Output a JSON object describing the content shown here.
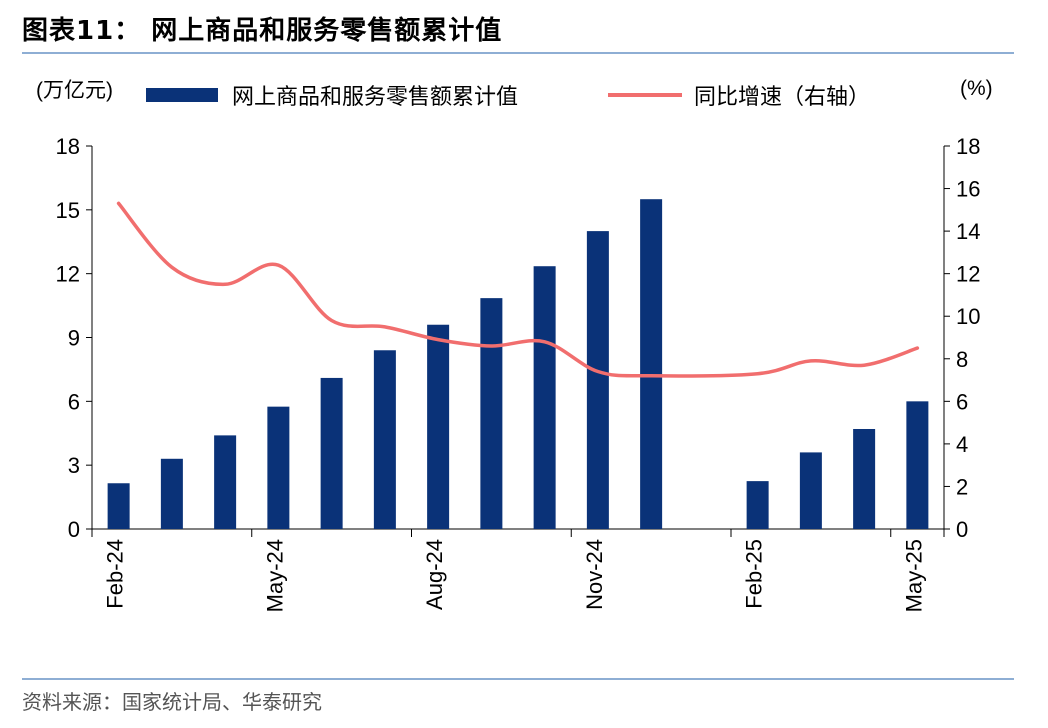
{
  "header": {
    "title": "图表11：  网上商品和服务零售额累计值"
  },
  "footer": {
    "source": "资料来源：国家统计局、华泰研究"
  },
  "colors": {
    "bar": "#0a3278",
    "line": "#f16e6e",
    "axis": "#000000",
    "rule": "#8eaed4"
  },
  "chart_data": {
    "type": "bar+line",
    "title": "网上商品和服务零售额累计值",
    "left_unit": "(万亿元)",
    "right_unit": "(%)",
    "legend": {
      "bar": "网上商品和服务零售额累计值",
      "line": "同比增速（右轴）"
    },
    "categories": [
      "Feb-24",
      "Mar-24",
      "Apr-24",
      "May-24",
      "Jun-24",
      "Jul-24",
      "Aug-24",
      "Sep-24",
      "Oct-24",
      "Nov-24",
      "Dec-24",
      "Jan-25",
      "Feb-25",
      "Mar-25",
      "Apr-25",
      "May-25"
    ],
    "x_tick_labels": [
      "Feb-24",
      "May-24",
      "Aug-24",
      "Nov-24",
      "Feb-25",
      "May-25"
    ],
    "x_tick_label_indices": [
      0,
      3,
      6,
      9,
      12,
      15
    ],
    "series": [
      {
        "name": "网上商品和服务零售额累计值",
        "axis": "left",
        "type": "bar",
        "values": [
          2.15,
          3.3,
          4.4,
          5.75,
          7.1,
          8.4,
          9.6,
          10.85,
          12.35,
          14.0,
          15.5,
          null,
          2.25,
          3.6,
          4.7,
          6.0
        ]
      },
      {
        "name": "同比增速（右轴）",
        "axis": "right",
        "type": "line",
        "values": [
          15.3,
          12.3,
          11.5,
          12.4,
          9.8,
          9.5,
          8.9,
          8.6,
          8.8,
          7.4,
          7.2,
          null,
          7.3,
          7.9,
          7.7,
          8.5
        ]
      }
    ],
    "left_axis": {
      "min": 0,
      "max": 18,
      "ticks": [
        0,
        3,
        6,
        9,
        12,
        15,
        18
      ]
    },
    "right_axis": {
      "min": 0,
      "max": 18,
      "ticks": [
        0,
        2,
        4,
        6,
        8,
        10,
        12,
        14,
        16,
        18
      ]
    }
  }
}
